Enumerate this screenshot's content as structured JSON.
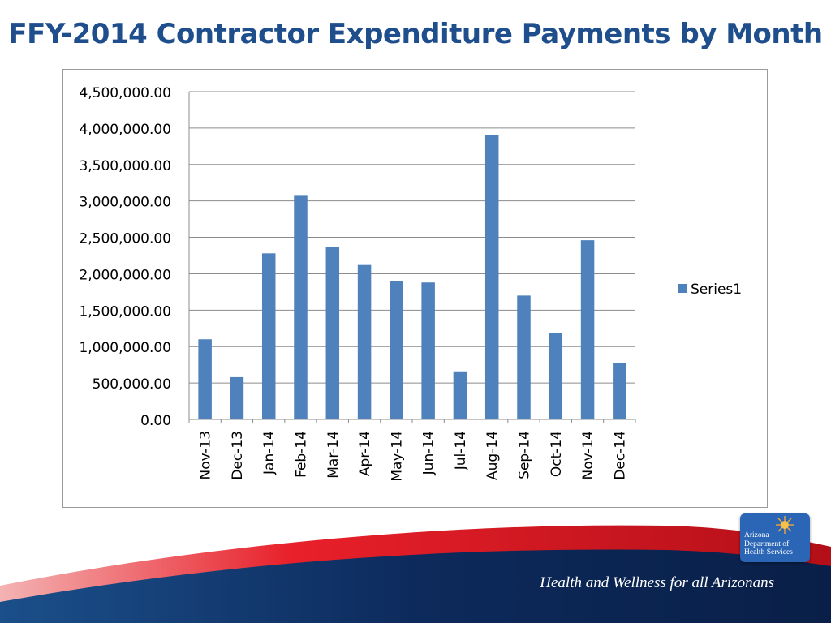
{
  "slide": {
    "title": "FFY-2014 Contractor Expenditure Payments by Month",
    "tagline": "Health and Wellness for all Arizonans",
    "logo": {
      "lines": [
        "Arizona",
        "Department of",
        "Health Services"
      ],
      "icon": "sun-icon"
    }
  },
  "colors": {
    "title": "#1f4e8c",
    "bar": "#4f81bd",
    "footer_red": "#e8202a",
    "footer_navy": "#0d2a5c",
    "logo_bg": "#2a66b5"
  },
  "chart_data": {
    "type": "bar",
    "categories": [
      "Nov-13",
      "Dec-13",
      "Jan-14",
      "Feb-14",
      "Mar-14",
      "Apr-14",
      "May-14",
      "Jun-14",
      "Jul-14",
      "Aug-14",
      "Sep-14",
      "Oct-14",
      "Nov-14",
      "Dec-14"
    ],
    "series": [
      {
        "name": "Series1",
        "values": [
          1100000,
          580000,
          2280000,
          3070000,
          2370000,
          2120000,
          1900000,
          1880000,
          660000,
          3900000,
          1700000,
          1190000,
          2460000,
          780000
        ]
      }
    ],
    "ylim": [
      0,
      4500000
    ],
    "yticks": [
      "0.00",
      "500,000.00",
      "1,000,000.00",
      "1,500,000.00",
      "2,000,000.00",
      "2,500,000.00",
      "3,000,000.00",
      "3,500,000.00",
      "4,000,000.00",
      "4,500,000.00"
    ],
    "grid": true,
    "legend": "right"
  }
}
